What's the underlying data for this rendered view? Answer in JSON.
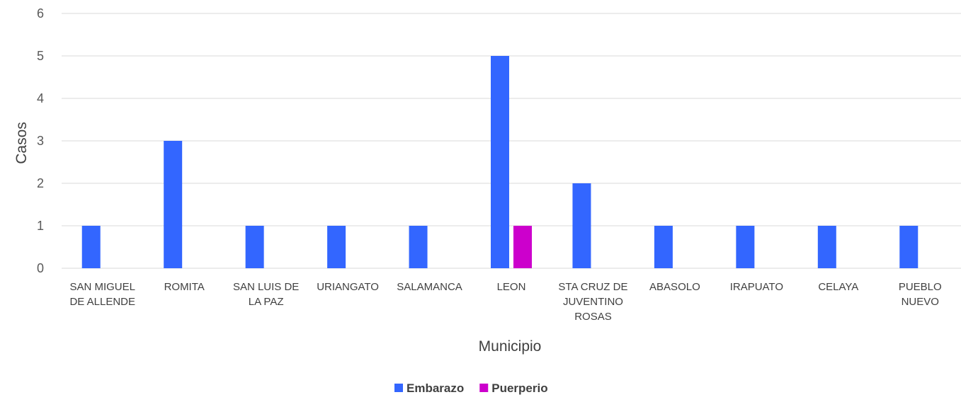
{
  "chart_data": {
    "type": "bar",
    "categories": [
      "SAN MIGUEL DE ALLENDE",
      "ROMITA",
      "SAN LUIS DE LA PAZ",
      "URIANGATO",
      "SALAMANCA",
      "LEON",
      "STA CRUZ DE JUVENTINO ROSAS",
      "ABASOLO",
      "IRAPUATO",
      "CELAYA",
      "PUEBLO NUEVO"
    ],
    "category_lines": [
      [
        "SAN MIGUEL",
        "DE ALLENDE"
      ],
      [
        "ROMITA"
      ],
      [
        "SAN LUIS DE",
        "LA PAZ"
      ],
      [
        "URIANGATO"
      ],
      [
        "SALAMANCA"
      ],
      [
        "LEON"
      ],
      [
        "STA CRUZ DE",
        "JUVENTINO",
        "ROSAS"
      ],
      [
        "ABASOLO"
      ],
      [
        "IRAPUATO"
      ],
      [
        "CELAYA"
      ],
      [
        "PUEBLO",
        "NUEVO"
      ]
    ],
    "series": [
      {
        "name": "Embarazo",
        "color": "#3366ff",
        "values": [
          1,
          3,
          1,
          1,
          1,
          5,
          2,
          1,
          1,
          1,
          1
        ]
      },
      {
        "name": "Puerperio",
        "color": "#cc00cc",
        "values": [
          0,
          0,
          0,
          0,
          0,
          1,
          0,
          0,
          0,
          0,
          0
        ]
      }
    ],
    "title": "",
    "xlabel": "Municipio",
    "ylabel": "Casos",
    "ylim": [
      0,
      6
    ],
    "yticks": [
      0,
      1,
      2,
      3,
      4,
      5,
      6
    ],
    "grid": true,
    "legend": "bottom",
    "colors": {
      "grid": "#d9d9d9",
      "text": "#404040"
    }
  }
}
